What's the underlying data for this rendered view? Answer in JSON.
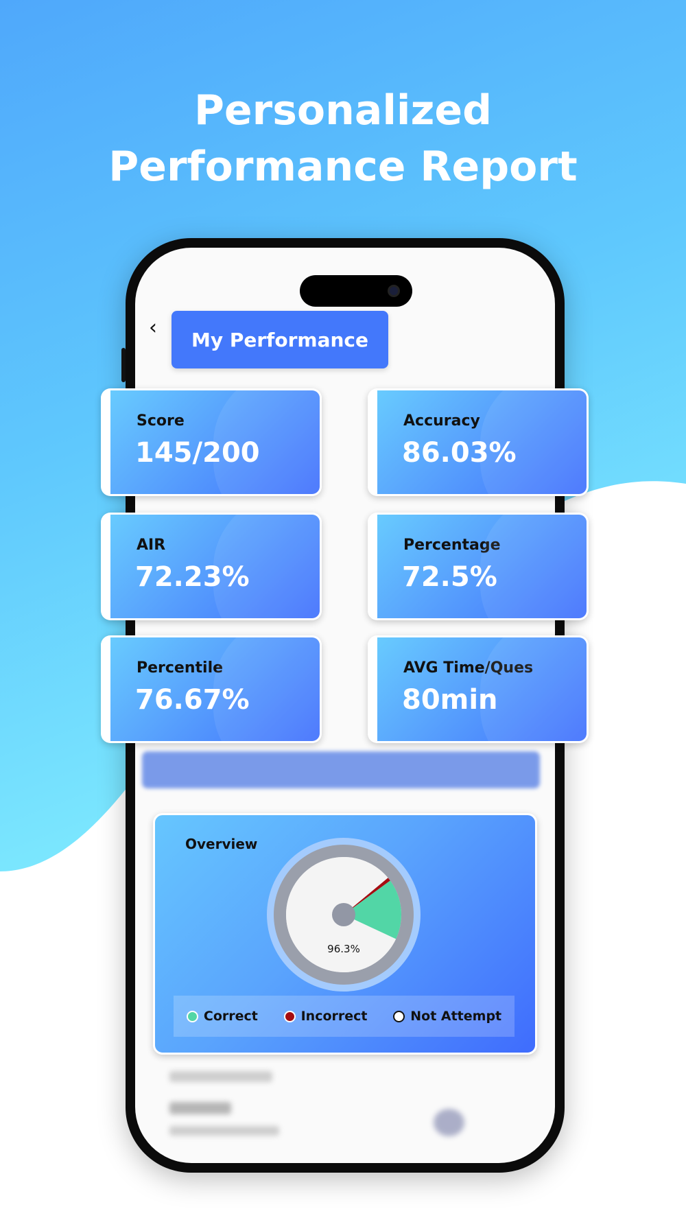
{
  "headline": {
    "line1": "Personalized",
    "line2": "Performance Report"
  },
  "colors": {
    "accent": "#4378fb",
    "bg_top": "#4fa9fb",
    "bg_cyan": "#7ee8fd",
    "correct": "#52d6a6",
    "incorrect": "#a50d12",
    "not_attempt": "#ffffff"
  },
  "header": {
    "back_icon": "chevron-left-icon",
    "title": "My Performance"
  },
  "stats": [
    {
      "label": "Score",
      "value": "145/200"
    },
    {
      "label": "Accuracy",
      "value": "86.03%"
    },
    {
      "label": "AIR",
      "value": "72.23%"
    },
    {
      "label": "Percentage",
      "value": "72.5%"
    },
    {
      "label": "Percentile",
      "value": "76.67%"
    },
    {
      "label": "AVG Time/Ques",
      "value": "80min"
    }
  ],
  "overview": {
    "title": "Overview"
  },
  "chart_data": {
    "type": "pie",
    "title": "Overview",
    "center_label": "96.3%",
    "slices": [
      {
        "name": "Correct",
        "value": 17,
        "color": "#52d6a6"
      },
      {
        "name": "Incorrect",
        "value": 1,
        "color": "#a50d12"
      },
      {
        "name": "Not Attempt",
        "value": 82,
        "color": "#ffffff"
      }
    ],
    "legend": [
      "Correct",
      "Incorrect",
      "Not Attempt"
    ],
    "legend_position": "bottom"
  }
}
